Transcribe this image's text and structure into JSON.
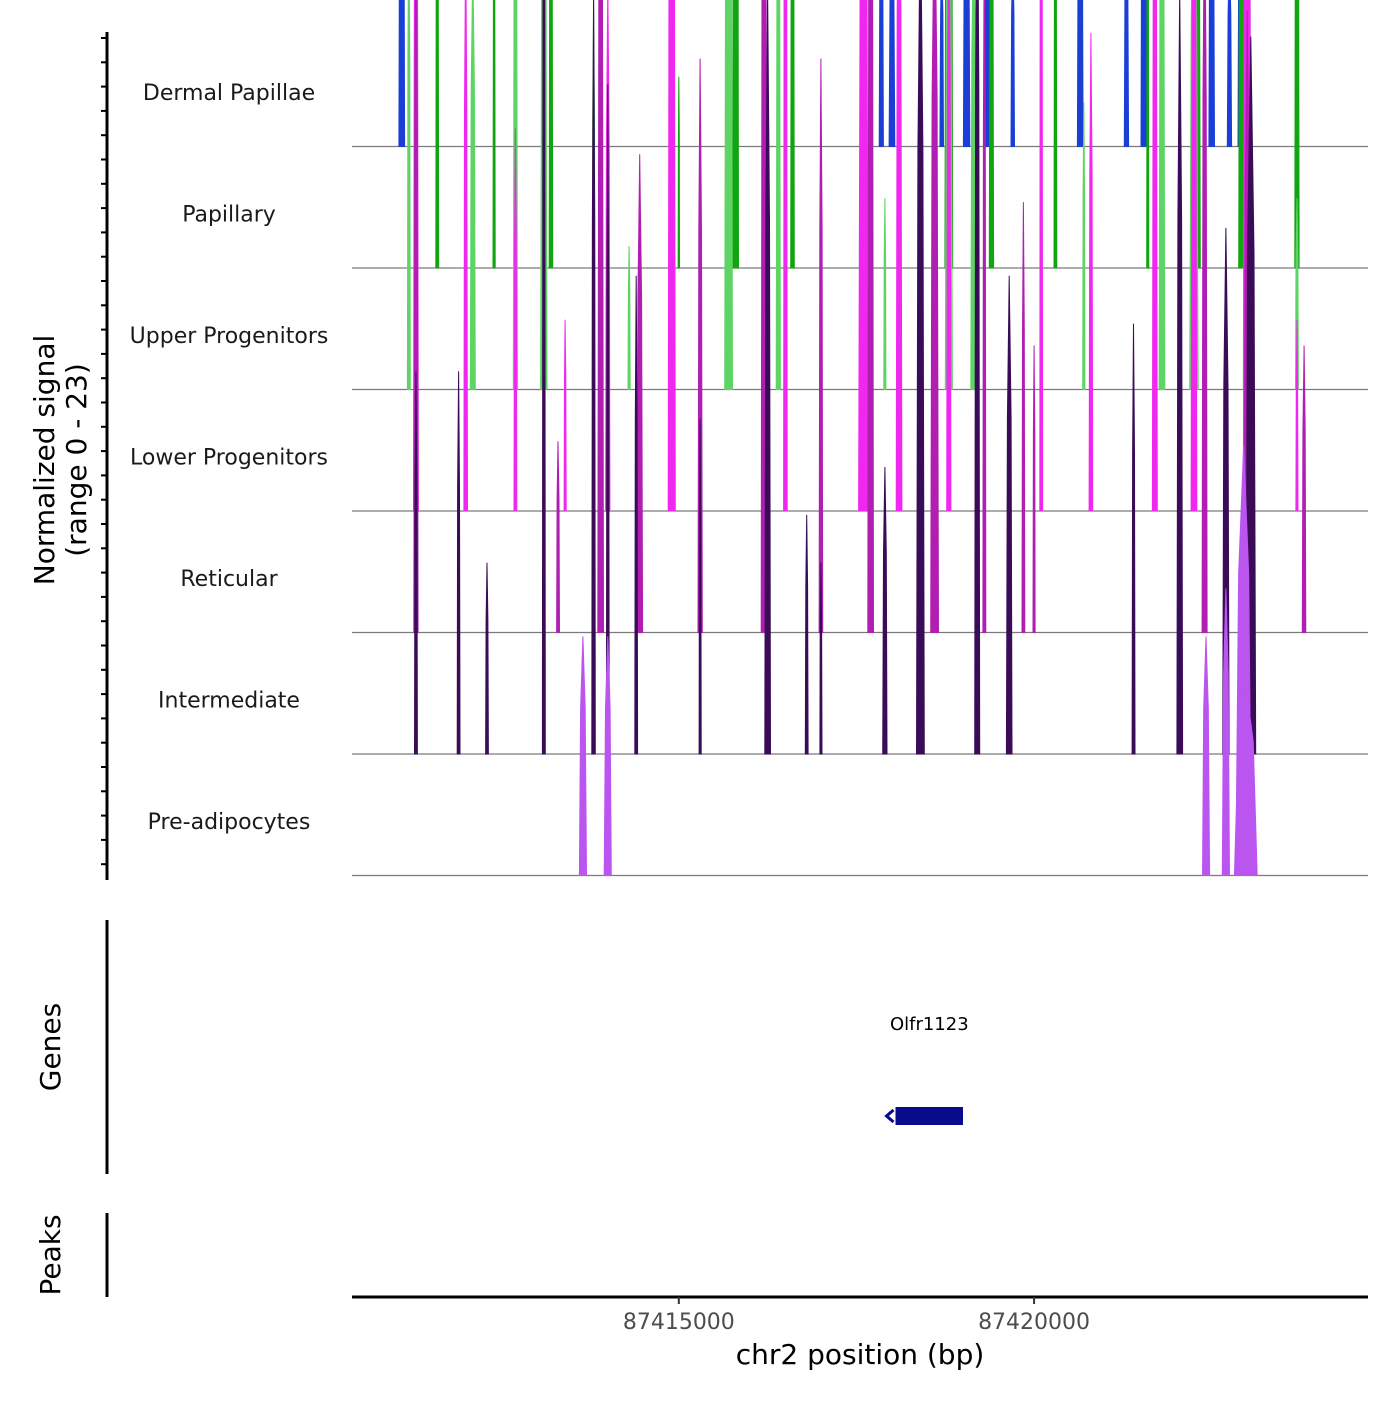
{
  "chart_data": {
    "type": "area",
    "title": "",
    "y_axis_label_line1": "Normalized signal",
    "y_axis_label_line2": "(range 0 - 23)",
    "ylim": [
      0,
      23
    ],
    "xlabel": "chr2 position (bp)",
    "xlim": [
      87410400,
      87424700
    ],
    "x_ticks": [
      {
        "value": 87415000,
        "label": "87415000"
      },
      {
        "value": 87420000,
        "label": "87420000"
      }
    ],
    "tracks": [
      {
        "name": "Dermal Papillae",
        "color": "#1a3fd6",
        "peaks": [
          [
            87411100,
            40,
            120
          ],
          [
            87417850,
            30,
            60
          ],
          [
            87418000,
            40,
            50
          ],
          [
            87418700,
            25,
            40
          ],
          [
            87419050,
            45,
            80
          ],
          [
            87419350,
            40,
            80
          ],
          [
            87419700,
            25,
            40
          ],
          [
            87420650,
            40,
            90
          ],
          [
            87421300,
            30,
            50
          ],
          [
            87421550,
            45,
            120
          ],
          [
            87422500,
            40,
            80
          ],
          [
            87422750,
            30,
            40
          ],
          [
            87422930,
            60,
            130
          ]
        ]
      },
      {
        "name": "Papillary",
        "color": "#11a511",
        "peaks": [
          [
            87411600,
            20,
            100
          ],
          [
            87412400,
            15,
            80
          ],
          [
            87413200,
            25,
            120
          ],
          [
            87413900,
            15,
            40
          ],
          [
            87415000,
            10,
            40
          ],
          [
            87415800,
            40,
            250
          ],
          [
            87416600,
            25,
            120
          ],
          [
            87418800,
            55,
            180
          ],
          [
            87419400,
            30,
            120
          ],
          [
            87420300,
            20,
            100
          ],
          [
            87421600,
            15,
            100
          ],
          [
            87422300,
            40,
            120
          ],
          [
            87422950,
            70,
            220
          ],
          [
            87423700,
            30,
            160
          ]
        ]
      },
      {
        "name": "Upper Progenitors",
        "color": "#5ed465",
        "peaks": [
          [
            87411200,
            20,
            100
          ],
          [
            87412100,
            35,
            90
          ],
          [
            87412700,
            30,
            120
          ],
          [
            87413100,
            45,
            140
          ],
          [
            87413800,
            20,
            80
          ],
          [
            87414300,
            15,
            30
          ],
          [
            87415700,
            55,
            200
          ],
          [
            87416400,
            30,
            120
          ],
          [
            87417900,
            15,
            40
          ],
          [
            87418800,
            50,
            120
          ],
          [
            87419150,
            40,
            100
          ],
          [
            87420700,
            15,
            60
          ],
          [
            87421800,
            40,
            150
          ],
          [
            87422250,
            60,
            110
          ],
          [
            87423000,
            55,
            150
          ],
          [
            87423700,
            20,
            40
          ]
        ]
      },
      {
        "name": "Lower Progenitors",
        "color": "#f028ef",
        "peaks": [
          [
            87411300,
            35,
            150
          ],
          [
            87412000,
            25,
            120
          ],
          [
            87412700,
            20,
            80
          ],
          [
            87413400,
            15,
            40
          ],
          [
            87414000,
            30,
            110
          ],
          [
            87414900,
            50,
            250
          ],
          [
            87416500,
            25,
            200
          ],
          [
            87417600,
            70,
            180
          ],
          [
            87418100,
            40,
            150
          ],
          [
            87418800,
            30,
            130
          ],
          [
            87420100,
            20,
            220
          ],
          [
            87420800,
            25,
            100
          ],
          [
            87421700,
            35,
            160
          ],
          [
            87422250,
            40,
            160
          ],
          [
            87423000,
            55,
            200
          ],
          [
            87423700,
            15,
            40
          ]
        ]
      },
      {
        "name": "Reticular",
        "color": "#b01fb1",
        "peaks": [
          [
            87411300,
            30,
            150
          ],
          [
            87413300,
            20,
            40
          ],
          [
            87413900,
            40,
            190
          ],
          [
            87414450,
            40,
            100
          ],
          [
            87415300,
            30,
            120
          ],
          [
            87416200,
            40,
            250
          ],
          [
            87417000,
            25,
            120
          ],
          [
            87417700,
            40,
            220
          ],
          [
            87418600,
            55,
            160
          ],
          [
            87419300,
            20,
            150
          ],
          [
            87419850,
            20,
            90
          ],
          [
            87420000,
            15,
            60
          ],
          [
            87422400,
            35,
            160
          ],
          [
            87423000,
            45,
            130
          ],
          [
            87423800,
            25,
            60
          ]
        ]
      },
      {
        "name": "Intermediate",
        "color": "#3a0c58",
        "peaks": [
          [
            87411300,
            20,
            80
          ],
          [
            87411900,
            20,
            80
          ],
          [
            87412300,
            20,
            40
          ],
          [
            87413100,
            20,
            220
          ],
          [
            87413800,
            25,
            160
          ],
          [
            87414000,
            20,
            140
          ],
          [
            87414400,
            20,
            100
          ],
          [
            87415300,
            15,
            70
          ],
          [
            87416250,
            40,
            160
          ],
          [
            87416800,
            20,
            50
          ],
          [
            87417000,
            15,
            40
          ],
          [
            87417900,
            30,
            60
          ],
          [
            87418400,
            55,
            180
          ],
          [
            87419200,
            35,
            200
          ],
          [
            87419650,
            40,
            100
          ],
          [
            87421400,
            20,
            90
          ],
          [
            87422050,
            40,
            160
          ],
          [
            87422700,
            45,
            110
          ],
          [
            87423050,
            70,
            150
          ]
        ]
      },
      {
        "name": "Pre-adipocytes",
        "color": "#bb55ef",
        "peaks": [
          [
            87413650,
            50,
            50
          ],
          [
            87414000,
            50,
            50
          ],
          [
            87422420,
            50,
            50
          ],
          [
            87422700,
            50,
            60
          ],
          [
            87422950,
            110,
            90
          ],
          [
            87422980,
            160,
            40
          ]
        ]
      }
    ],
    "genes_label": "Genes",
    "genes": [
      {
        "name": "Olfr1123",
        "start": 87418050,
        "end": 87419000,
        "strand": "-",
        "color": "#0a0a8c"
      }
    ],
    "peaks_label": "Peaks",
    "peaks": []
  }
}
